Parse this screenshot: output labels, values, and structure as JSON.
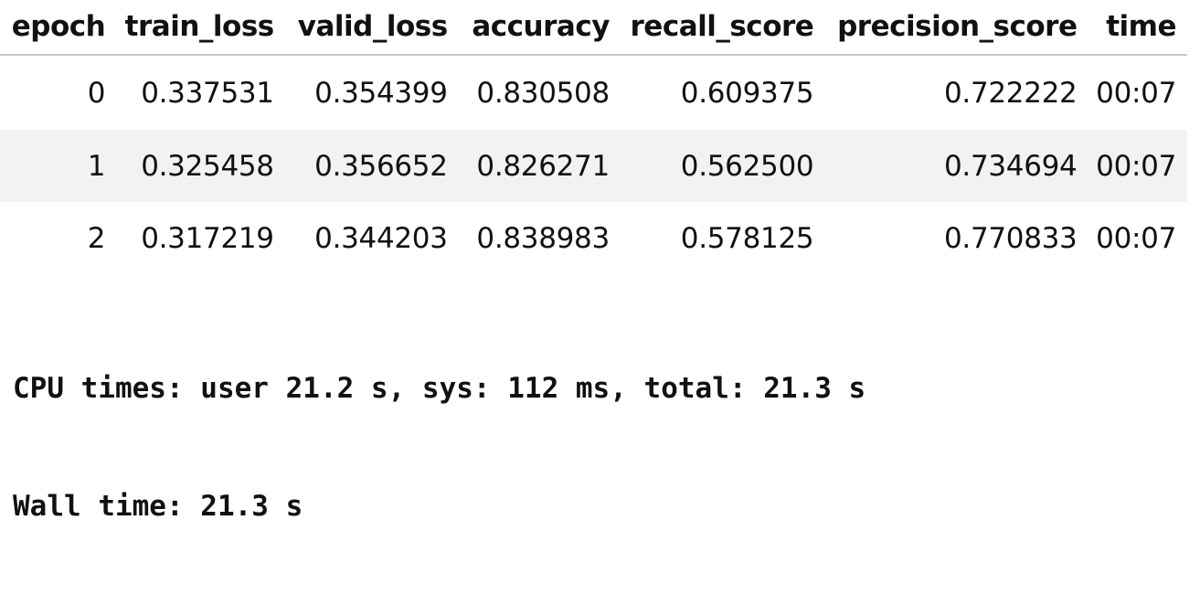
{
  "results_table": {
    "headers": [
      "epoch",
      "train_loss",
      "valid_loss",
      "accuracy",
      "recall_score",
      "precision_score",
      "time"
    ],
    "rows": [
      [
        "0",
        "0.337531",
        "0.354399",
        "0.830508",
        "0.609375",
        "0.722222",
        "00:07"
      ],
      [
        "1",
        "0.325458",
        "0.356652",
        "0.826271",
        "0.562500",
        "0.734694",
        "00:07"
      ],
      [
        "2",
        "0.317219",
        "0.344203",
        "0.838983",
        "0.578125",
        "0.770833",
        "00:07"
      ]
    ]
  },
  "console_output": {
    "cpu_times": "CPU times: user 21.2 s, sys: 112 ms, total: 21.3 s",
    "wall_time": "Wall time: 21.3 s"
  }
}
